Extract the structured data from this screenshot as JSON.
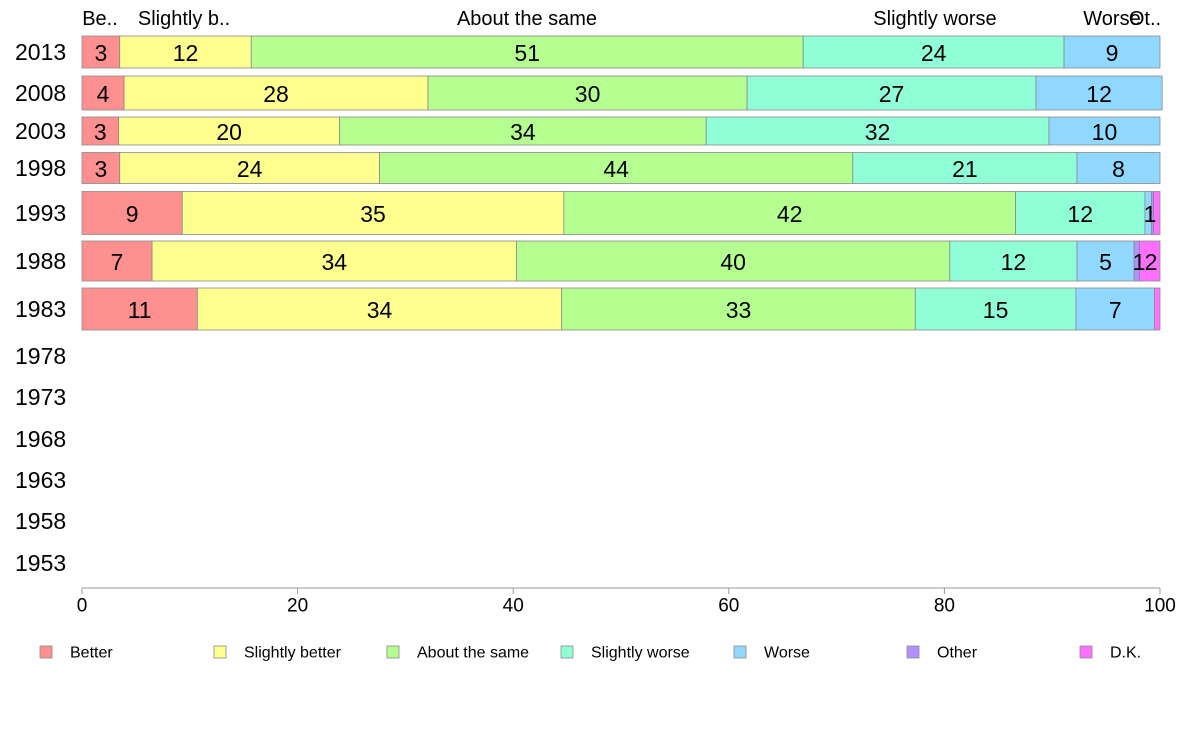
{
  "chart_data": {
    "type": "bar",
    "orientation": "horizontal",
    "stacked": true,
    "title": "",
    "xlabel": "",
    "ylabel": "",
    "xlim": [
      0,
      100
    ],
    "x_ticks": [
      0,
      20,
      40,
      60,
      80,
      100
    ],
    "grid": false,
    "legend_position": "bottom",
    "categories": [
      "2013",
      "2008",
      "2003",
      "1998",
      "1993",
      "1988",
      "1983",
      "1978",
      "1973",
      "1968",
      "1963",
      "1958",
      "1953"
    ],
    "series": [
      {
        "name": "Better",
        "color": "#ff9090",
        "values": [
          3.5,
          3.9,
          3.4,
          3.5,
          9.3,
          6.5,
          10.7,
          null,
          null,
          null,
          null,
          null,
          null
        ]
      },
      {
        "name": "Slightly better",
        "color": "#ffff90",
        "values": [
          12.2,
          28.2,
          20.5,
          24.1,
          35.4,
          33.8,
          33.8,
          null,
          null,
          null,
          null,
          null,
          null
        ]
      },
      {
        "name": "About the same",
        "color": "#b4ff90",
        "values": [
          51.2,
          29.6,
          34.0,
          43.9,
          41.9,
          40.2,
          32.8,
          null,
          null,
          null,
          null,
          null,
          null
        ]
      },
      {
        "name": "Slightly worse",
        "color": "#90ffd8",
        "values": [
          24.2,
          26.8,
          31.8,
          20.8,
          12.0,
          11.8,
          14.9,
          null,
          null,
          null,
          null,
          null,
          null
        ]
      },
      {
        "name": "Worse",
        "color": "#90d8ff",
        "values": [
          8.9,
          11.7,
          10.3,
          7.7,
          0.6,
          5.3,
          7.3,
          null,
          null,
          null,
          null,
          null,
          null
        ]
      },
      {
        "name": "Other",
        "color": "#b490ff",
        "values": [
          0,
          0,
          0,
          0,
          0.2,
          0.5,
          0,
          null,
          null,
          null,
          null,
          null,
          null
        ]
      },
      {
        "name": "D.K.",
        "color": "#ff70ff",
        "values": [
          0,
          0,
          0,
          0,
          0.6,
          1.9,
          0.5,
          null,
          null,
          null,
          null,
          null,
          null
        ]
      }
    ],
    "data_labels": [
      [
        "3",
        "12",
        "51",
        "24",
        "9",
        "",
        ""
      ],
      [
        "4",
        "28",
        "30",
        "27",
        "12",
        "",
        ""
      ],
      [
        "3",
        "20",
        "34",
        "32",
        "10",
        "",
        ""
      ],
      [
        "3",
        "24",
        "44",
        "21",
        "8",
        "",
        ""
      ],
      [
        "9",
        "35",
        "42",
        "12",
        "1",
        "",
        ""
      ],
      [
        "7",
        "34",
        "40",
        "12",
        "5",
        "1",
        "2"
      ],
      [
        "11",
        "34",
        "33",
        "15",
        "7",
        "",
        ""
      ]
    ],
    "column_headers": [
      "Be..",
      "Slightly b..",
      "About the same",
      "",
      "Slightly worse",
      "Worse",
      "Ot.."
    ]
  }
}
